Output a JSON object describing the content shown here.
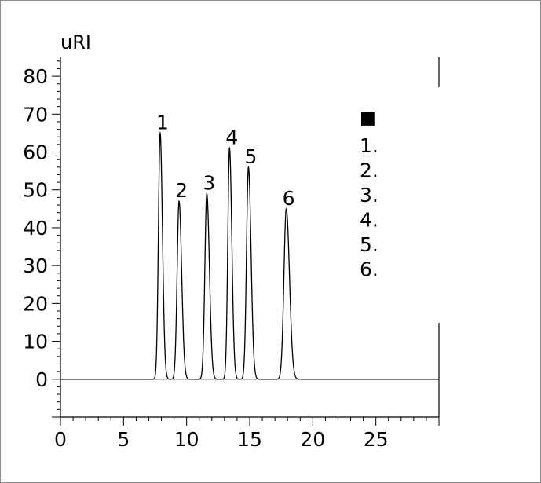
{
  "chart_data": {
    "type": "line",
    "ylabel": "uRI",
    "xlabel": "",
    "xlim": [
      0,
      30
    ],
    "ylim": [
      -10,
      85
    ],
    "x_ticks": [
      "0",
      "5",
      "10",
      "15",
      "20",
      "25"
    ],
    "y_ticks": [
      "0",
      "10",
      "20",
      "30",
      "40",
      "50",
      "60",
      "70",
      "80"
    ],
    "baseline": 0,
    "grid": false,
    "peaks": [
      {
        "label": "1",
        "x": 7.9,
        "y": 65,
        "width": 0.16
      },
      {
        "label": "2",
        "x": 9.4,
        "y": 47,
        "width": 0.18
      },
      {
        "label": "3",
        "x": 11.6,
        "y": 49,
        "width": 0.18
      },
      {
        "label": "4",
        "x": 13.4,
        "y": 61,
        "width": 0.16
      },
      {
        "label": "5",
        "x": 14.9,
        "y": 56,
        "width": 0.18
      },
      {
        "label": "6",
        "x": 17.9,
        "y": 45,
        "width": 0.22
      }
    ],
    "legend": {
      "position": "right",
      "marker": "■",
      "entries": [
        "1.",
        "2.",
        "3.",
        "4.",
        "5.",
        "6."
      ]
    }
  }
}
